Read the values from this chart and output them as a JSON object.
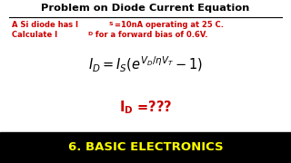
{
  "title": "Problem on Diode Current Equation",
  "line1a": "A Si diode has I",
  "line1b": "S",
  "line1c": "=10nA operating at 25 C.",
  "line2a": "Calculate I",
  "line2b": "D",
  "line2c": " for a forward bias of 0.6V.",
  "equation": "$I_D = I_S \\left( e^{V_D/\\eta V_T} - 1 \\right)$",
  "result": "$\\mathbf{I_D}$ =???",
  "footer": "6. BASIC ELECTRONICS",
  "bg_color": "#ffffff",
  "footer_bg": "#000000",
  "title_color": "#000000",
  "body_color": "#cc0000",
  "eq_color": "#000000",
  "result_color": "#cc0000",
  "footer_color": "#ffff00"
}
